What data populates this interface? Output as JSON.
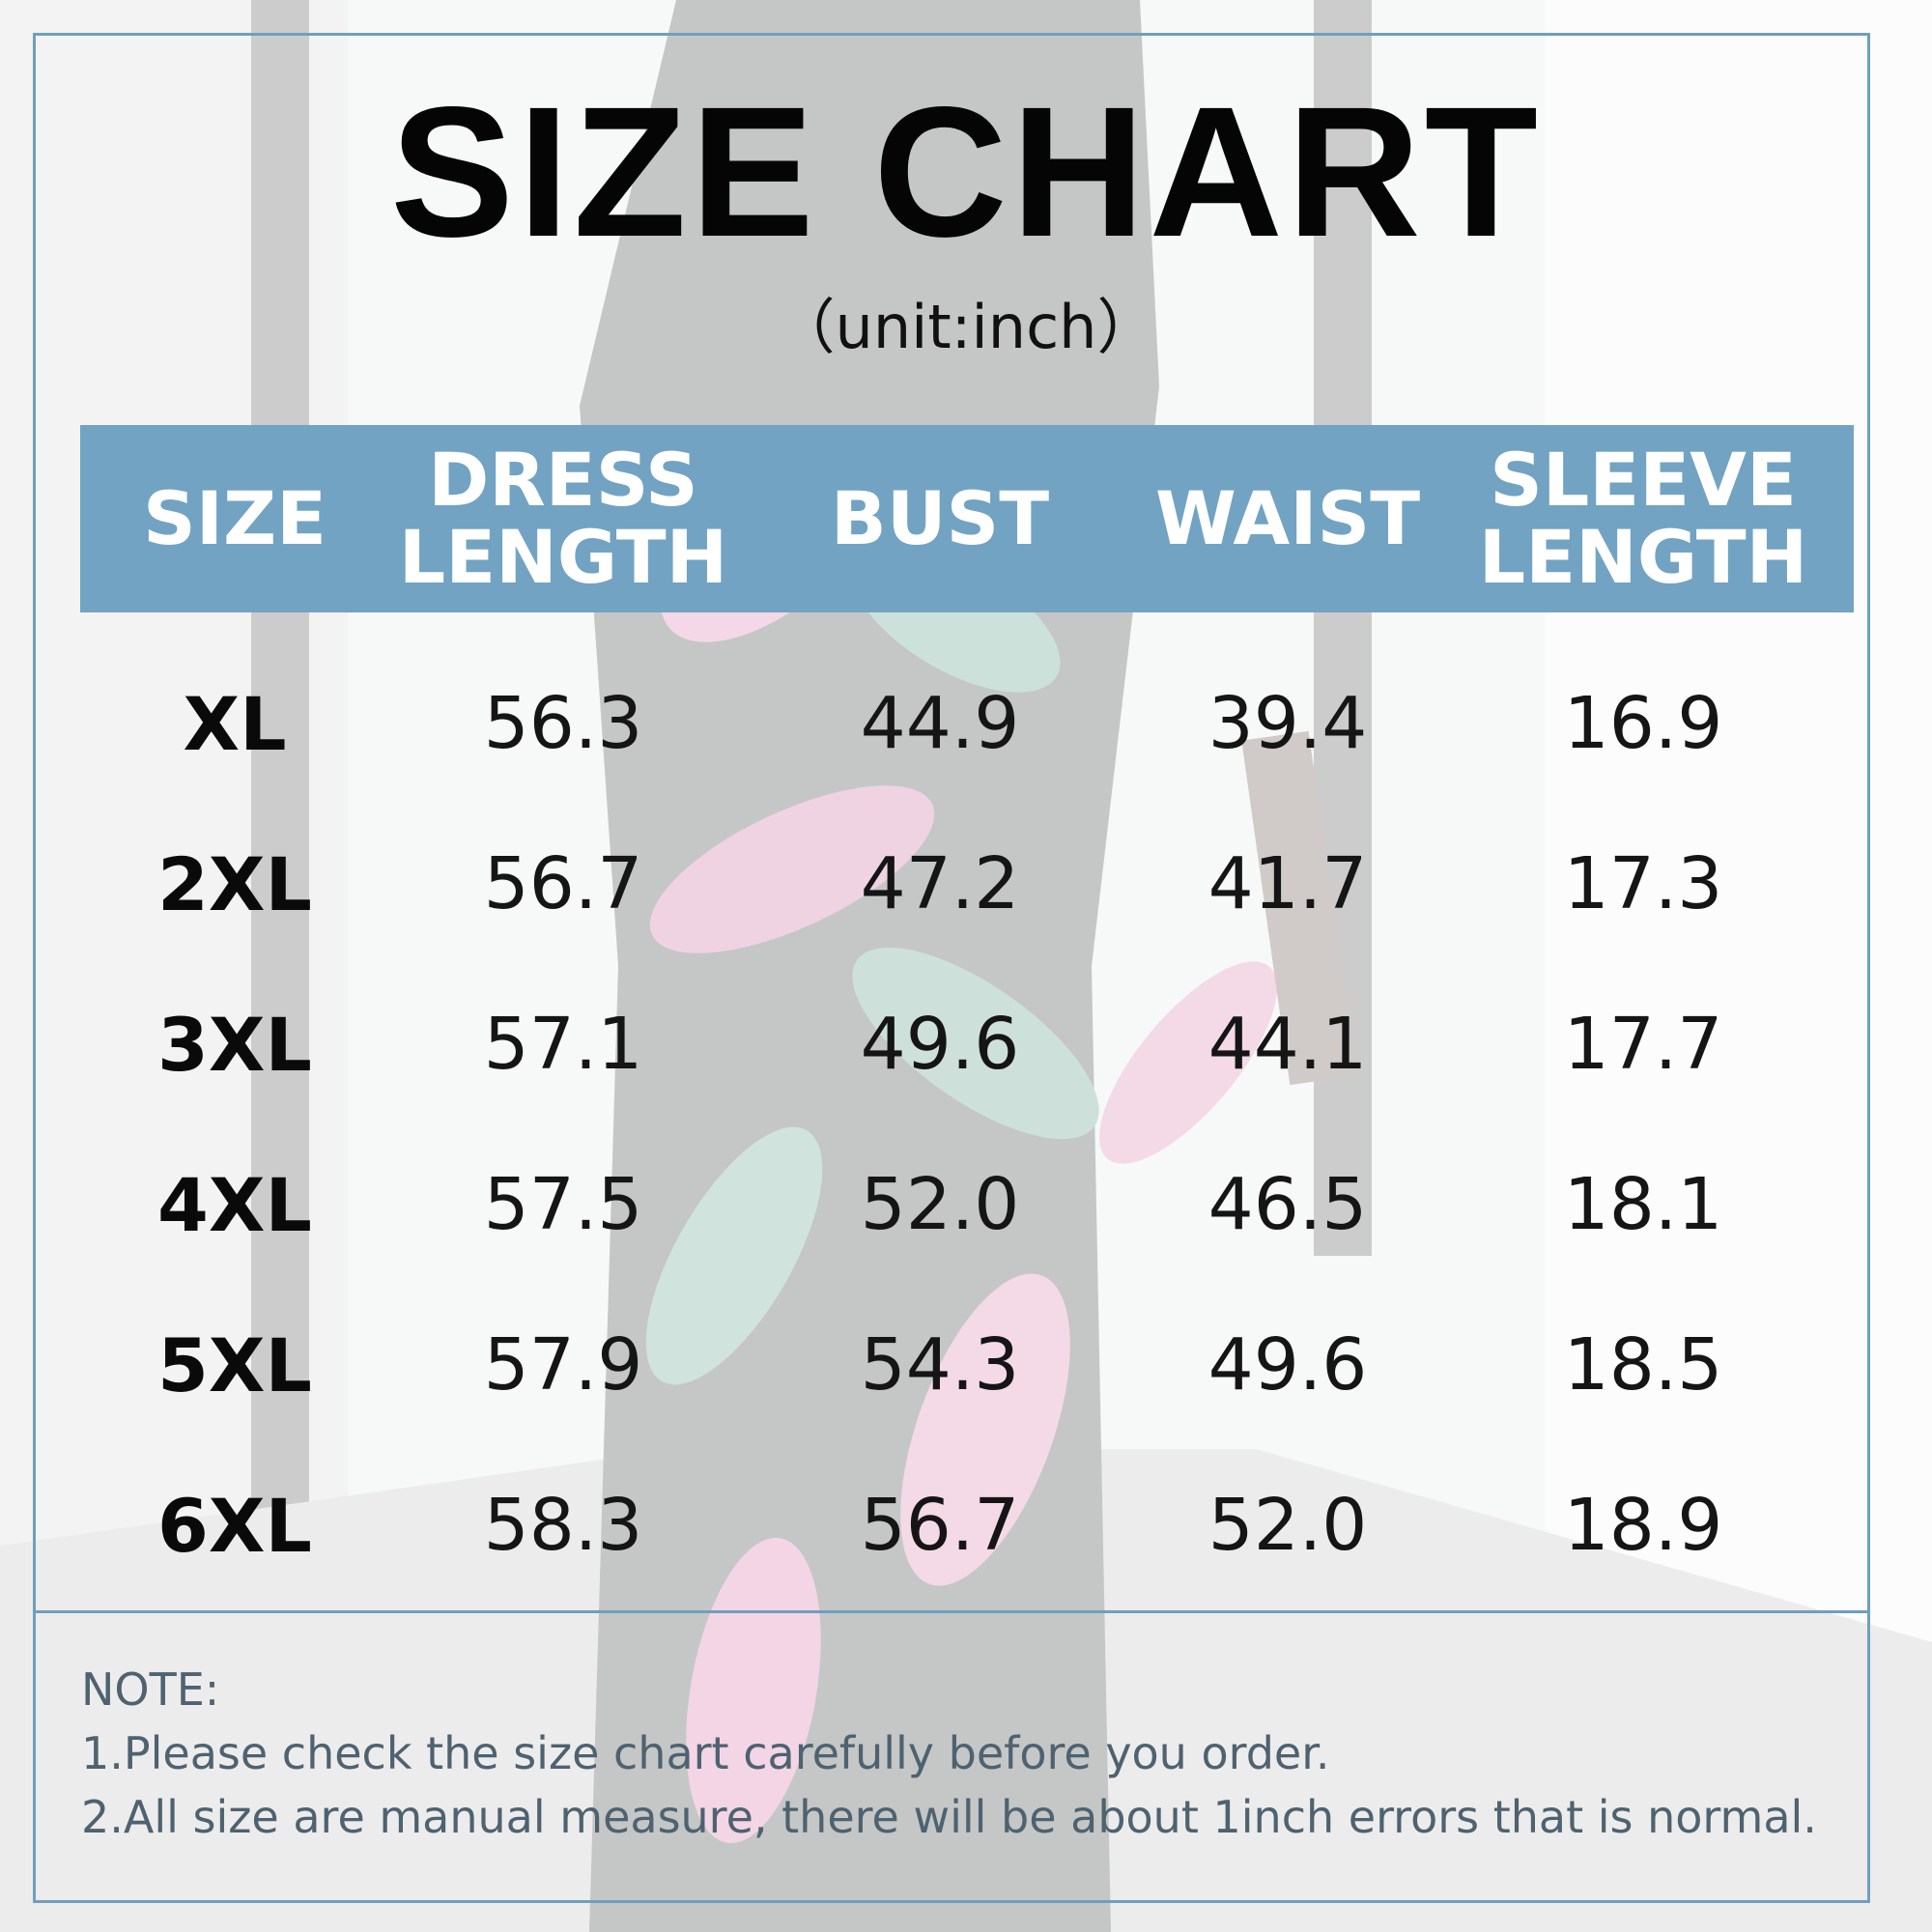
{
  "title": "SIZE CHART",
  "subtitle": "（unit:inch）",
  "colors": {
    "header_bg": "#72a3c3",
    "frame": "#6f9fbd",
    "header_text": "#ffffff",
    "note_text": "#4e6270"
  },
  "table": {
    "headers": [
      [
        "SIZE"
      ],
      [
        "DRESS",
        "LENGTH"
      ],
      [
        "BUST"
      ],
      [
        "WAIST"
      ],
      [
        "SLEEVE",
        "LENGTH"
      ]
    ],
    "rows": [
      [
        "XL",
        "56.3",
        "44.9",
        "39.4",
        "16.9"
      ],
      [
        "2XL",
        "56.7",
        "47.2",
        "41.7",
        "17.3"
      ],
      [
        "3XL",
        "57.1",
        "49.6",
        "44.1",
        "17.7"
      ],
      [
        "4XL",
        "57.5",
        "52.0",
        "46.5",
        "18.1"
      ],
      [
        "5XL",
        "57.9",
        "54.3",
        "49.6",
        "18.5"
      ],
      [
        "6XL",
        "58.3",
        "56.7",
        "52.0",
        "18.9"
      ]
    ]
  },
  "notes": {
    "heading": "NOTE:",
    "lines": [
      "1.Please check the size chart carefully before you order.",
      "2.All size are manual measure, there will be about 1inch errors that is normal."
    ]
  }
}
